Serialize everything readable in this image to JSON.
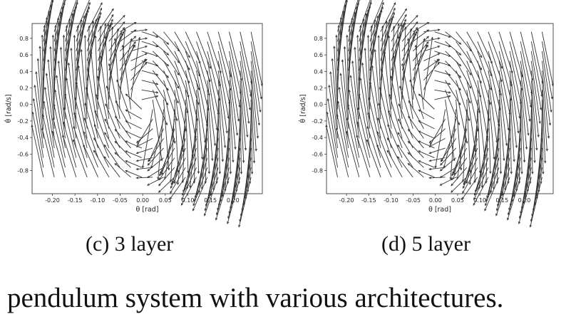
{
  "chart_data": [
    {
      "type": "quiver",
      "xlabel": "θ [rad]",
      "ylabel": "θ̇ [rad/s]",
      "xticks": [
        -0.2,
        -0.15,
        -0.1,
        -0.05,
        0.0,
        0.05,
        0.1,
        0.15,
        0.2
      ],
      "yticks": [
        -0.8,
        -0.6,
        -0.4,
        -0.2,
        0.0,
        0.2,
        0.4,
        0.6,
        0.8
      ],
      "xlim": [
        -0.245,
        0.265
      ],
      "ylim": [
        -1.08,
        0.98
      ],
      "grid": false,
      "x_range": [
        -0.22,
        0.24
      ],
      "y_range": [
        -0.88,
        0.88
      ],
      "grid_size": [
        20,
        16
      ],
      "arrow_color": "#333333"
    },
    {
      "type": "quiver",
      "xlabel": "θ [rad]",
      "ylabel": "θ̇ [rad/s]",
      "xticks": [
        -0.2,
        -0.15,
        -0.1,
        -0.05,
        0.0,
        0.05,
        0.1,
        0.15,
        0.2
      ],
      "yticks": [
        -0.8,
        -0.6,
        -0.4,
        -0.2,
        0.0,
        0.2,
        0.4,
        0.6,
        0.8
      ],
      "xlim": [
        -0.245,
        0.265
      ],
      "ylim": [
        -1.08,
        0.98
      ],
      "grid": false,
      "x_range": [
        -0.22,
        0.24
      ],
      "y_range": [
        -0.88,
        0.88
      ],
      "grid_size": [
        20,
        16
      ],
      "arrow_color": "#333333"
    }
  ],
  "captions": [
    "(c) 3 layer",
    "(d) 5 layer"
  ],
  "body_text": "pendulum system with various architectures."
}
